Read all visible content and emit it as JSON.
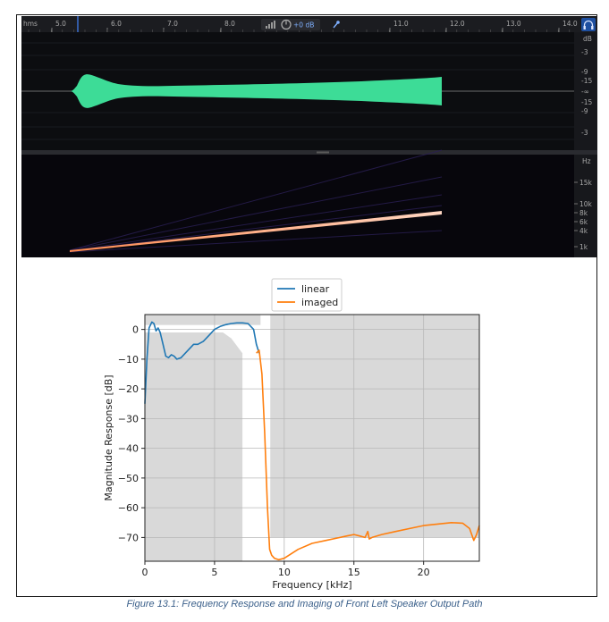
{
  "editor": {
    "ruler_unit": "hms",
    "time_ticks": [
      "5.0",
      "6.0",
      "7.0",
      "8.0",
      "11.0",
      "12.0",
      "13.0",
      "14.0"
    ],
    "gain_readout": "+0 dB",
    "db_scale_title": "dB",
    "db_scale_labels": [
      "-3",
      "-9",
      "-15",
      "-∞",
      "-15",
      "-9",
      "-3"
    ],
    "freq_scale_title": "Hz",
    "freq_scale_labels": [
      "15k",
      "10k",
      "8k",
      "6k",
      "4k",
      "1k"
    ],
    "colors": {
      "waveform": "#3ddc97",
      "sweep": "#ffb08a",
      "background": "#0c0d10"
    },
    "icons": [
      "meter-icon",
      "gain-knob-icon",
      "pin-icon",
      "headphones-icon"
    ]
  },
  "chart_data": {
    "type": "line",
    "title": "",
    "xlabel": "Frequency [kHz]",
    "ylabel": "Magnitude Response [dB]",
    "xlim": [
      0,
      24
    ],
    "ylim": [
      -78,
      5
    ],
    "x_ticks": [
      0,
      5,
      10,
      15,
      20
    ],
    "y_ticks": [
      0,
      -10,
      -20,
      -30,
      -40,
      -50,
      -60,
      -70
    ],
    "grid": true,
    "legend_position": "top-center",
    "series": [
      {
        "name": "linear",
        "color": "#1f77b4",
        "x": [
          0.0,
          0.15,
          0.3,
          0.5,
          0.65,
          0.8,
          0.95,
          1.1,
          1.3,
          1.5,
          1.7,
          1.9,
          2.1,
          2.3,
          2.6,
          2.9,
          3.2,
          3.5,
          3.8,
          4.2,
          4.6,
          5.0,
          5.4,
          5.8,
          6.2,
          6.6,
          7.0,
          7.4,
          7.8,
          8.0,
          8.2
        ],
        "y": [
          -25,
          -10,
          0.5,
          2.5,
          2.0,
          -0.5,
          0.5,
          -1,
          -5,
          -9,
          -9.5,
          -8.5,
          -9,
          -10,
          -9.5,
          -8,
          -6.5,
          -5,
          -5,
          -4,
          -2,
          0,
          1,
          1.6,
          2,
          2.2,
          2.2,
          2.0,
          0,
          -5,
          -8
        ]
      },
      {
        "name": "imaged",
        "color": "#ff7f0e",
        "x": [
          8.0,
          8.2,
          8.4,
          8.6,
          8.8,
          8.95,
          9.1,
          9.3,
          9.6,
          10.0,
          11.0,
          12.0,
          13.0,
          14.0,
          14.5,
          15.0,
          15.4,
          15.8,
          16.0,
          16.1,
          16.3,
          17.0,
          18.0,
          19.0,
          20.0,
          21.0,
          22.0,
          22.8,
          23.3,
          23.6,
          23.8,
          24.0
        ],
        "y": [
          -8,
          -7,
          -15,
          -35,
          -60,
          -74,
          -76,
          -77,
          -77.5,
          -77,
          -74,
          -72,
          -71,
          -70,
          -69.5,
          -69,
          -69.5,
          -70,
          -68,
          -70.5,
          -70,
          -69,
          -68,
          -67,
          -66,
          -65.5,
          -65,
          -65.2,
          -67,
          -71,
          -69,
          -66
        ]
      }
    ],
    "spec_mask": {
      "passband_max_khz": 7,
      "stopband_start_khz": 9,
      "stopband_level_db": -70,
      "passband_level_db": -1
    }
  },
  "caption": "Figure 13.1: Frequency Response and Imaging of Front Left Speaker Output Path"
}
